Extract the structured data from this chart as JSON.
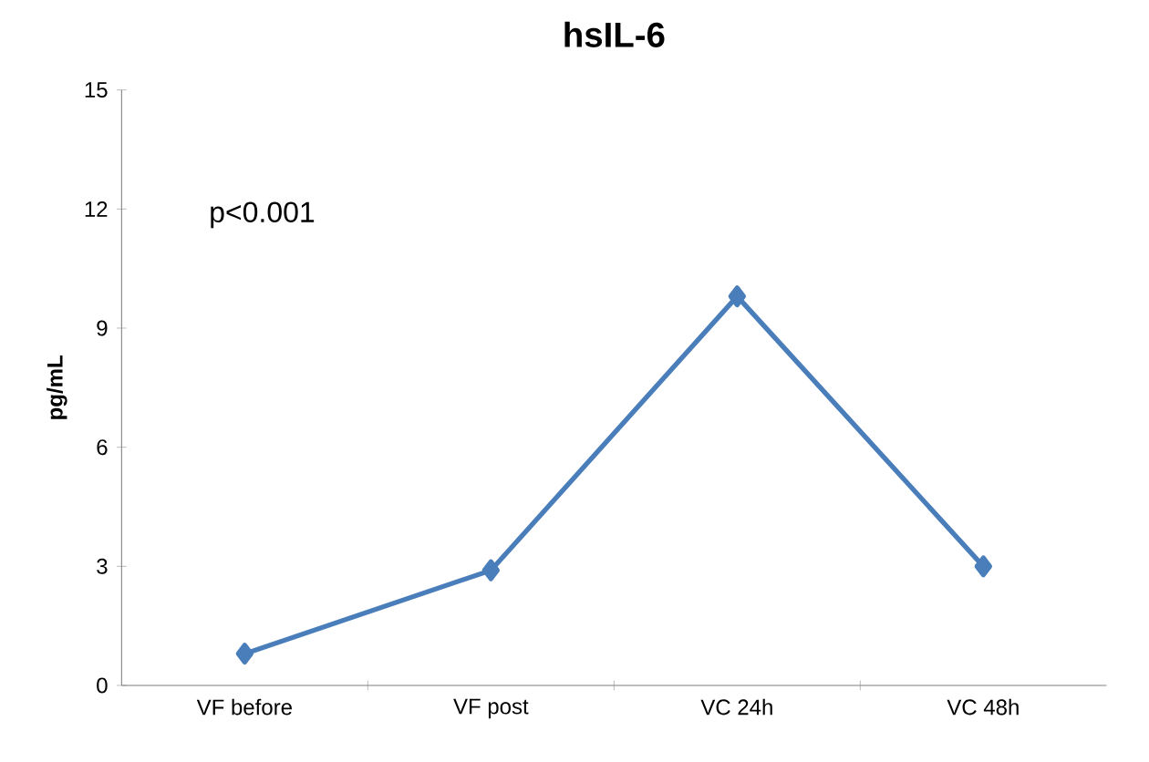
{
  "chart_data": {
    "type": "line",
    "title": "hsIL-6",
    "ylabel": "pg/mL",
    "categories": [
      "VF before",
      "VF post",
      "VC 24h",
      "VC 48h"
    ],
    "values": [
      0.8,
      2.9,
      9.8,
      3.0
    ],
    "color": "#4a7ebb",
    "marker": "diamond",
    "line_style": "solid",
    "ylim": [
      0,
      15
    ],
    "yticks": [
      0,
      3,
      6,
      9,
      12,
      15
    ],
    "grid": false,
    "annotations": [
      "p<0.001"
    ]
  }
}
